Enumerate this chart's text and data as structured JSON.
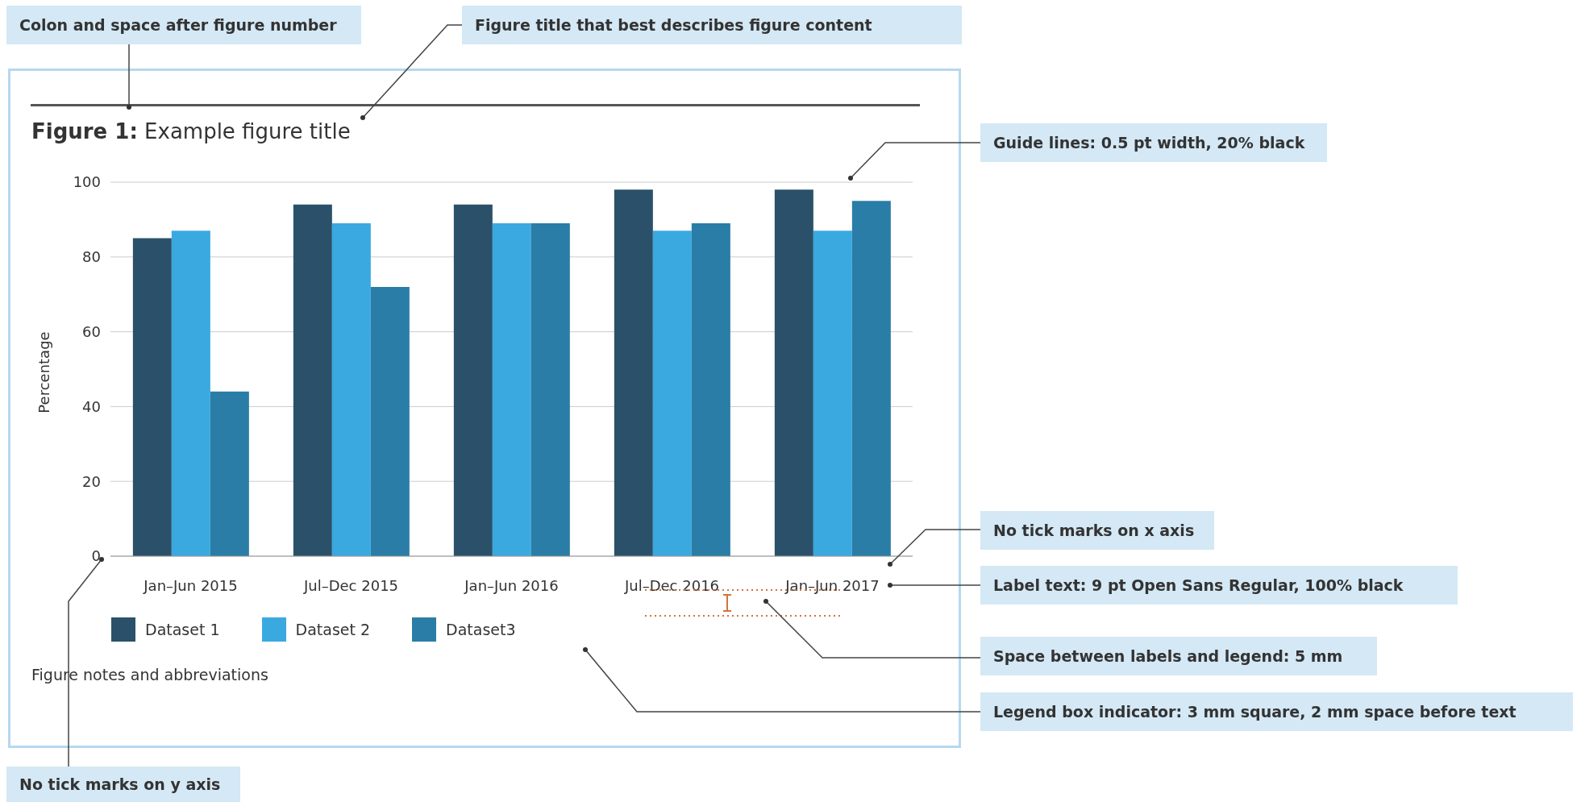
{
  "chart_data": {
    "type": "bar",
    "title": "Figure 1: Example figure title",
    "ylabel": "Percentage",
    "categories": [
      "Jan–Jun 2015",
      "Jul–Dec 2015",
      "Jan–Jun 2016",
      "Jul–Dec 2016",
      "Jan–Jun 2017"
    ],
    "series": [
      {
        "name": "Dataset 1",
        "color": "#2a5169",
        "values": [
          85,
          94,
          94,
          98,
          98
        ]
      },
      {
        "name": "Dataset 2",
        "color": "#3aa9e0",
        "values": [
          87,
          89,
          89,
          87,
          87
        ]
      },
      {
        "name": "Dataset3",
        "color": "#2a7da6",
        "values": [
          44,
          72,
          89,
          89,
          95
        ]
      }
    ],
    "ylim": [
      0,
      100
    ],
    "yticks": [
      0,
      20,
      40,
      60,
      80,
      100
    ],
    "grid": "y",
    "legend": "bottom left",
    "annotations": [
      "Figure notes and abbreviations",
      "Colon and space after figure number",
      "Figure title that best describes figure content",
      "Guide lines: 0.5 pt width, 20% black",
      "No tick marks on x axis",
      "Label text: 9 pt Open Sans Regular, 100% black",
      "Space between labels and legend: 5 mm",
      "Legend box indicator: 3 mm square, 2 mm space before text",
      "No tick marks on y axis"
    ]
  }
}
